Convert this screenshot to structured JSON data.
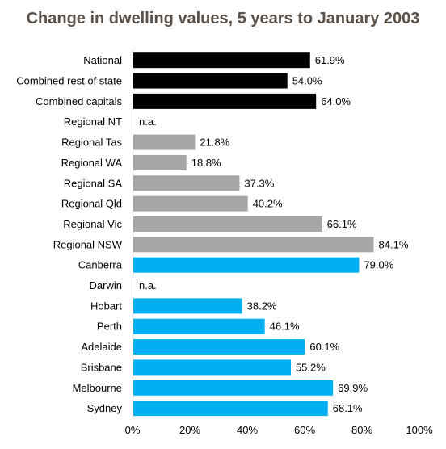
{
  "chart_data": {
    "type": "bar",
    "orientation": "horizontal",
    "title": "Change in dwelling values, 5 years to January 2003",
    "xlabel": "",
    "ylabel": "",
    "xlim": [
      0,
      100
    ],
    "x_ticks": [
      "0%",
      "20%",
      "40%",
      "60%",
      "80%",
      "100%"
    ],
    "grid": false,
    "legend": "none",
    "categories": [
      "National",
      "Combined rest of state",
      "Combined capitals",
      "Regional NT",
      "Regional Tas",
      "Regional WA",
      "Regional SA",
      "Regional Qld",
      "Regional Vic",
      "Regional NSW",
      "Canberra",
      "Darwin",
      "Hobart",
      "Perth",
      "Adelaide",
      "Brisbane",
      "Melbourne",
      "Sydney"
    ],
    "values": [
      61.9,
      54.0,
      64.0,
      null,
      21.8,
      18.8,
      37.3,
      40.2,
      66.1,
      84.1,
      79.0,
      null,
      38.2,
      46.1,
      60.1,
      55.2,
      69.9,
      68.1
    ],
    "value_labels": [
      "61.9%",
      "54.0%",
      "64.0%",
      "n.a.",
      "21.8%",
      "18.8%",
      "37.3%",
      "40.2%",
      "66.1%",
      "84.1%",
      "79.0%",
      "n.a.",
      "38.2%",
      "46.1%",
      "60.1%",
      "55.2%",
      "69.9%",
      "68.1%"
    ],
    "groups": [
      "aggregate",
      "aggregate",
      "aggregate",
      "regional",
      "regional",
      "regional",
      "regional",
      "regional",
      "regional",
      "regional",
      "capital",
      "capital",
      "capital",
      "capital",
      "capital",
      "capital",
      "capital",
      "capital"
    ],
    "colors": {
      "aggregate": "#000000",
      "regional": "#a6a6a6",
      "capital": "#00b0f0"
    }
  }
}
